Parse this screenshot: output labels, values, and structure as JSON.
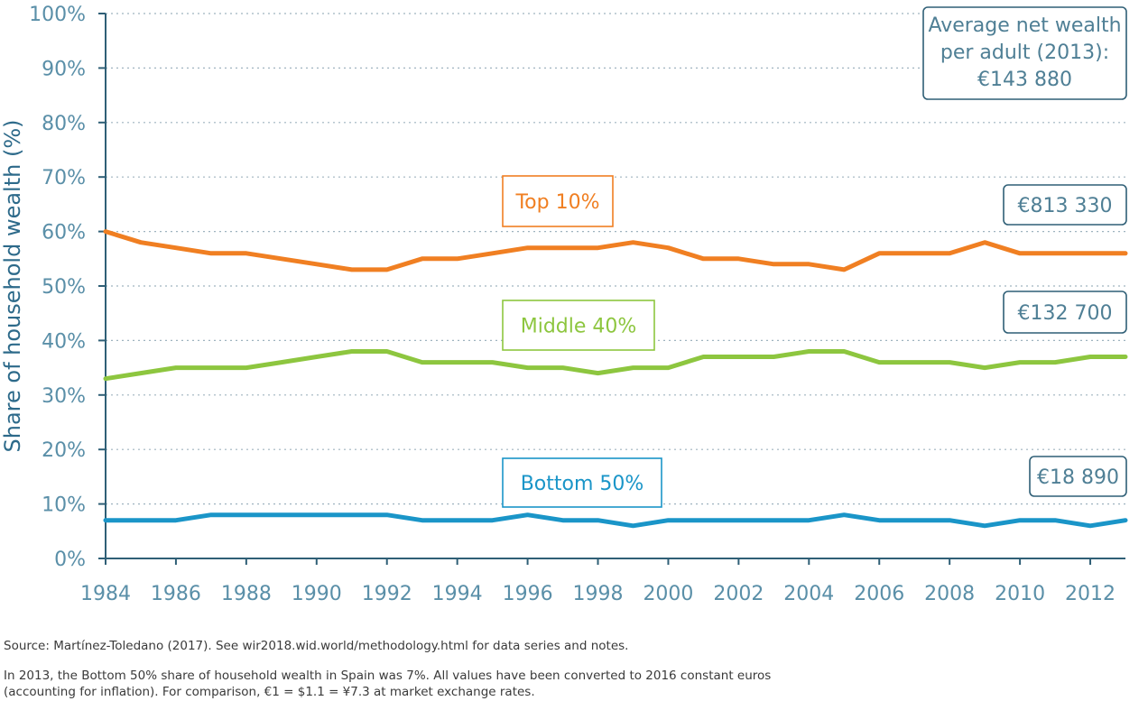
{
  "chart_data": {
    "type": "line",
    "ylabel": "Share of household wealth (%)",
    "ylim": [
      0,
      100
    ],
    "yticks": [
      "0%",
      "10%",
      "20%",
      "30%",
      "40%",
      "50%",
      "60%",
      "70%",
      "80%",
      "90%",
      "100%"
    ],
    "xlim": [
      1984,
      2013
    ],
    "xticks": [
      "1984",
      "1986",
      "1988",
      "1990",
      "1992",
      "1994",
      "1996",
      "1998",
      "2000",
      "2002",
      "2004",
      "2006",
      "2008",
      "2010",
      "2012"
    ],
    "grid": "horizontal dotted",
    "x": [
      1984,
      1985,
      1986,
      1987,
      1988,
      1989,
      1990,
      1991,
      1992,
      1993,
      1994,
      1995,
      1996,
      1997,
      1998,
      1999,
      2000,
      2001,
      2002,
      2003,
      2004,
      2005,
      2006,
      2007,
      2008,
      2009,
      2010,
      2011,
      2012,
      2013
    ],
    "series": [
      {
        "name": "Top 10%",
        "color": "#f07f22",
        "value_label": "€813 330",
        "values": [
          60,
          58,
          57,
          56,
          56,
          55,
          54,
          53,
          53,
          55,
          55,
          56,
          57,
          57,
          57,
          58,
          57,
          55,
          55,
          54,
          54,
          53,
          56,
          56,
          56,
          58,
          56,
          56,
          56,
          56
        ]
      },
      {
        "name": "Middle 40%",
        "color": "#8dc63f",
        "value_label": "€132 700",
        "values": [
          33,
          34,
          35,
          35,
          35,
          36,
          37,
          38,
          38,
          36,
          36,
          36,
          35,
          35,
          34,
          35,
          35,
          37,
          37,
          37,
          38,
          38,
          36,
          36,
          36,
          35,
          36,
          36,
          37,
          37
        ]
      },
      {
        "name": "Bottom 50%",
        "color": "#1a95c8",
        "value_label": "€18 890",
        "values": [
          7,
          7,
          7,
          8,
          8,
          8,
          8,
          8,
          8,
          7,
          7,
          7,
          8,
          7,
          7,
          6,
          7,
          7,
          7,
          7,
          7,
          8,
          7,
          7,
          7,
          6,
          7,
          7,
          6,
          7
        ]
      }
    ],
    "average_box": [
      "Average net wealth",
      "per adult (2013):",
      "€143 880"
    ]
  },
  "source": "Source: Martínez-Toledano (2017). See wir2018.wid.world/methodology.html for data series and notes.",
  "footnote": "In 2013, the Bottom 50% share of household wealth in Spain was 7%. All values have been converted to 2016 constant euros (accounting for inflation). For comparison, €1 = $1.1 = ¥7.3 at market exchange rates."
}
